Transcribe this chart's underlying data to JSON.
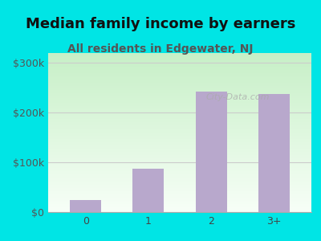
{
  "categories": [
    "0",
    "1",
    "2",
    "3+"
  ],
  "values": [
    25000,
    88000,
    242000,
    238000
  ],
  "bar_color": "#b8a8cc",
  "title": "Median family income by earners",
  "subtitle": "All residents in Edgewater, NJ",
  "title_fontsize": 13,
  "subtitle_fontsize": 10,
  "title_color": "#111111",
  "subtitle_color": "#555555",
  "ylim": [
    0,
    320000
  ],
  "yticks": [
    0,
    100000,
    200000,
    300000
  ],
  "ytick_labels": [
    "$0",
    "$100k",
    "$200k",
    "$300k"
  ],
  "background_color": "#00e5e5",
  "watermark": "City-Data.com",
  "grid_color": "#cccccc"
}
